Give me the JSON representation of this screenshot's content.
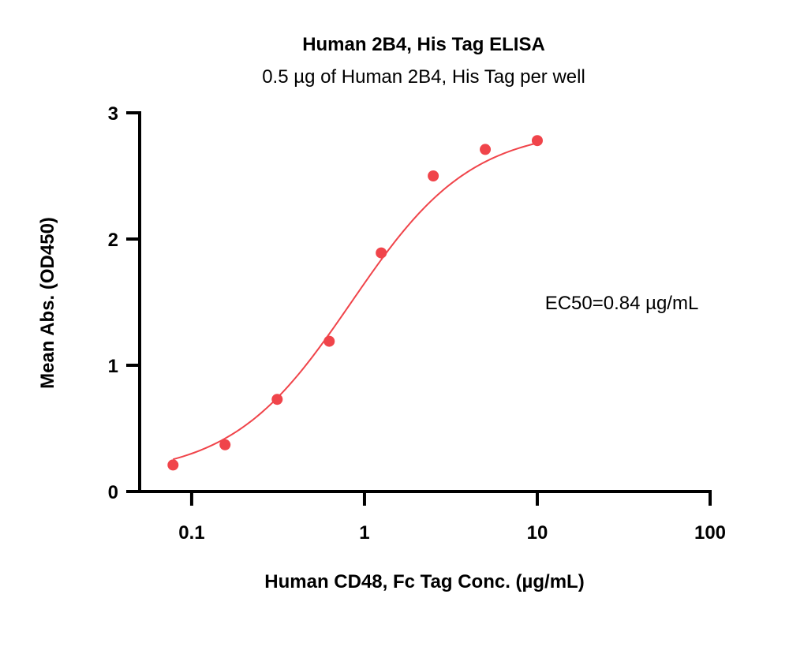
{
  "chart_data": {
    "type": "scatter",
    "title": "Human 2B4, His Tag ELISA",
    "subtitle": "0.5 µg of Human 2B4, His Tag per well",
    "xlabel": "Human CD48, Fc Tag Conc. (µg/mL)",
    "ylabel": "Mean Abs. (OD450)",
    "x_scale": "log",
    "xlim": [
      0.05,
      100
    ],
    "ylim": [
      0,
      3
    ],
    "x_ticks": [
      0.1,
      1,
      10,
      100
    ],
    "x_tick_labels": [
      "0.1",
      "1",
      "10",
      "100"
    ],
    "y_ticks": [
      0,
      1,
      2,
      3
    ],
    "y_tick_labels": [
      "0",
      "1",
      "2",
      "3"
    ],
    "grid": false,
    "series": [
      {
        "x": [
          0.078,
          0.156,
          0.3125,
          0.625,
          1.25,
          2.5,
          5,
          10
        ],
        "y": [
          0.21,
          0.37,
          0.73,
          1.19,
          1.89,
          2.5,
          2.71,
          2.78
        ],
        "color": "#f0444a"
      }
    ],
    "fit": {
      "type": "4PL",
      "bottom": 0.12,
      "top": 2.88,
      "ec50": 0.84,
      "hill": 1.25,
      "color": "#f0444a"
    },
    "annotations": [
      {
        "text": "EC50=0.84 µg/mL",
        "position": "right-middle"
      }
    ]
  }
}
